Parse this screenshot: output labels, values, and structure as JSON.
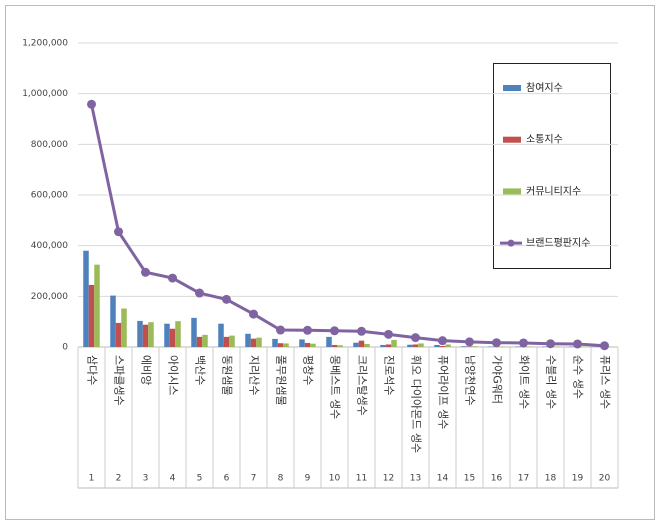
{
  "chart_data": {
    "type": "bar-line",
    "categories": [
      "삼다수",
      "스파클생수",
      "에비앙",
      "아이시스",
      "백산수",
      "동원샘물",
      "지리산수",
      "풀무원샘물",
      "평창수",
      "몽베스트 생수",
      "크리스탈생수",
      "진로석수",
      "휘오 다이아몬드 생수",
      "퓨어라이프 생수",
      "남양천연수",
      "가야G워터",
      "화이트 생수",
      "수블리 생수",
      "순수 생수",
      "퓨리스 생수"
    ],
    "category_ranks": [
      1,
      2,
      3,
      4,
      5,
      6,
      7,
      8,
      9,
      10,
      11,
      12,
      13,
      14,
      15,
      16,
      17,
      18,
      19,
      20
    ],
    "series": [
      {
        "name": "참여지수",
        "color": "#4f81bd",
        "kind": "bar",
        "values": [
          380000,
          203000,
          103000,
          92000,
          115000,
          92000,
          52000,
          32000,
          30000,
          40000,
          17000,
          8000,
          9000,
          8000,
          3000,
          2000,
          2000,
          2000,
          2000,
          2000
        ]
      },
      {
        "name": "소통지수",
        "color": "#c0504d",
        "kind": "bar",
        "values": [
          245000,
          95000,
          88000,
          72000,
          40000,
          40000,
          33000,
          15000,
          16000,
          8000,
          25000,
          10000,
          10000,
          4000,
          2000,
          1000,
          1000,
          1000,
          1000,
          1000
        ]
      },
      {
        "name": "커뮤니티지수",
        "color": "#9bbb59",
        "kind": "bar",
        "values": [
          325000,
          152000,
          98000,
          102000,
          48000,
          45000,
          37000,
          14000,
          13000,
          7000,
          12000,
          28000,
          14000,
          10000,
          3000,
          2000,
          2000,
          2000,
          2000,
          1000
        ]
      },
      {
        "name": "브랜드평판지수",
        "color": "#8064a2",
        "kind": "line",
        "values": [
          958000,
          455000,
          295000,
          272000,
          213000,
          188000,
          130000,
          67000,
          66000,
          64000,
          62000,
          50000,
          37000,
          25000,
          20000,
          17000,
          16000,
          13000,
          12000,
          5000
        ]
      }
    ],
    "ylim": [
      0,
      1200000
    ],
    "yticks": [
      0,
      {
        "value": 200000,
        "label": "200,000"
      },
      {
        "value": 400000,
        "label": "400,000"
      },
      {
        "value": 600000,
        "label": "600,000"
      },
      {
        "value": 800000,
        "label": "800,000"
      },
      {
        "value": 1000000,
        "label": "1,000,000"
      },
      {
        "value": 1200000,
        "label": "1,200,000"
      }
    ],
    "grid": true
  }
}
